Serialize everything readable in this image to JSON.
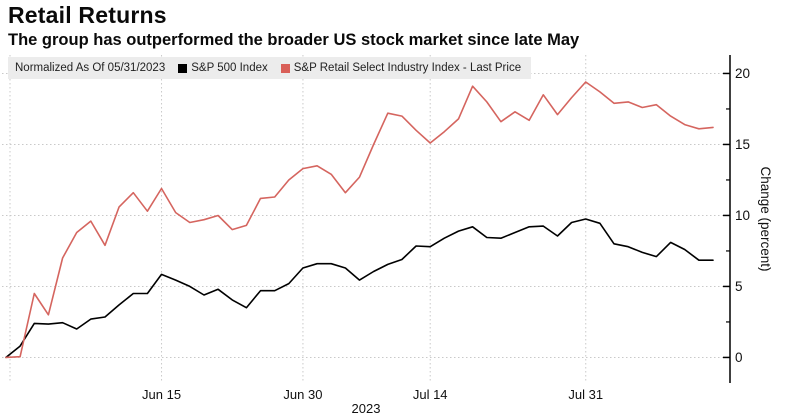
{
  "header": {
    "title": "Retail Returns",
    "subtitle": "The group has outperformed the broader US stock market since late May"
  },
  "legend": {
    "note": "Normalized As Of 05/31/2023",
    "items": [
      {
        "label": "S&P 500 Index",
        "color": "#000000"
      },
      {
        "label": "S&P Retail Select Industry Index - Last Price",
        "color": "#d95f58"
      }
    ]
  },
  "chart_data": {
    "type": "line",
    "title": "Retail Returns",
    "subtitle": "The group has outperformed the broader US stock market since late May",
    "normalized_note": "Normalized As Of 05/31/2023",
    "ylabel": "Change (percent)",
    "ylim": [
      -1.8,
      21.3
    ],
    "yticks": [
      0,
      5,
      10,
      15,
      20
    ],
    "yticks_minor": [
      2.5,
      7.5,
      12.5,
      17.5
    ],
    "grid": "dotted",
    "legend_position": "top-left",
    "x": [
      "05/31",
      "06/01",
      "06/02",
      "06/05",
      "06/06",
      "06/07",
      "06/08",
      "06/09",
      "06/12",
      "06/13",
      "06/14",
      "06/15",
      "06/16",
      "06/20",
      "06/21",
      "06/22",
      "06/23",
      "06/26",
      "06/27",
      "06/28",
      "06/29",
      "06/30",
      "07/03",
      "07/05",
      "07/06",
      "07/07",
      "07/10",
      "07/11",
      "07/12",
      "07/13",
      "07/14",
      "07/17",
      "07/18",
      "07/19",
      "07/20",
      "07/21",
      "07/24",
      "07/25",
      "07/26",
      "07/27",
      "07/28",
      "07/31",
      "08/01",
      "08/02",
      "08/03",
      "08/04",
      "08/07",
      "08/08",
      "08/09",
      "08/10",
      "08/11"
    ],
    "xticks": [
      {
        "index": 0,
        "label": ""
      },
      {
        "index": 11,
        "label": "Jun 15"
      },
      {
        "index": 21,
        "label": "Jun 30"
      },
      {
        "index": 30,
        "label": "Jul 14"
      },
      {
        "index": 41,
        "label": "Jul 31"
      }
    ],
    "year_label": "2023",
    "series": [
      {
        "name": "S&P 500 Index",
        "color": "#000000",
        "values": [
          0,
          0.8,
          2.4,
          2.35,
          2.45,
          2.0,
          2.7,
          2.85,
          3.7,
          4.5,
          4.5,
          5.85,
          5.45,
          5.0,
          4.4,
          4.8,
          4.05,
          3.5,
          4.7,
          4.7,
          5.2,
          6.3,
          6.6,
          6.6,
          6.3,
          5.45,
          6.05,
          6.55,
          6.9,
          7.85,
          7.8,
          8.4,
          8.9,
          9.2,
          8.45,
          8.4,
          8.8,
          9.2,
          9.25,
          8.55,
          9.5,
          9.75,
          9.45,
          8.0,
          7.8,
          7.4,
          7.1,
          8.1,
          7.6,
          6.85,
          6.85
        ]
      },
      {
        "name": "S&P Retail Select Industry Index - Last Price",
        "color": "#d5655f",
        "values": [
          0,
          0.05,
          4.5,
          3.0,
          7.0,
          8.8,
          9.6,
          7.9,
          10.6,
          11.6,
          10.3,
          11.9,
          10.2,
          9.5,
          9.7,
          10.0,
          9.0,
          9.3,
          11.2,
          11.3,
          12.5,
          13.3,
          13.5,
          12.9,
          11.6,
          12.7,
          15.0,
          17.2,
          17.0,
          16.0,
          15.1,
          15.9,
          16.8,
          19.1,
          18.0,
          16.6,
          17.3,
          16.7,
          18.5,
          17.1,
          18.3,
          19.4,
          18.7,
          17.9,
          18.0,
          17.6,
          17.8,
          17.0,
          16.4,
          16.1,
          16.2
        ]
      }
    ],
    "axis_color": "#000000",
    "grid_color": "#c9c9c9",
    "tick_label_color": "#111111"
  }
}
